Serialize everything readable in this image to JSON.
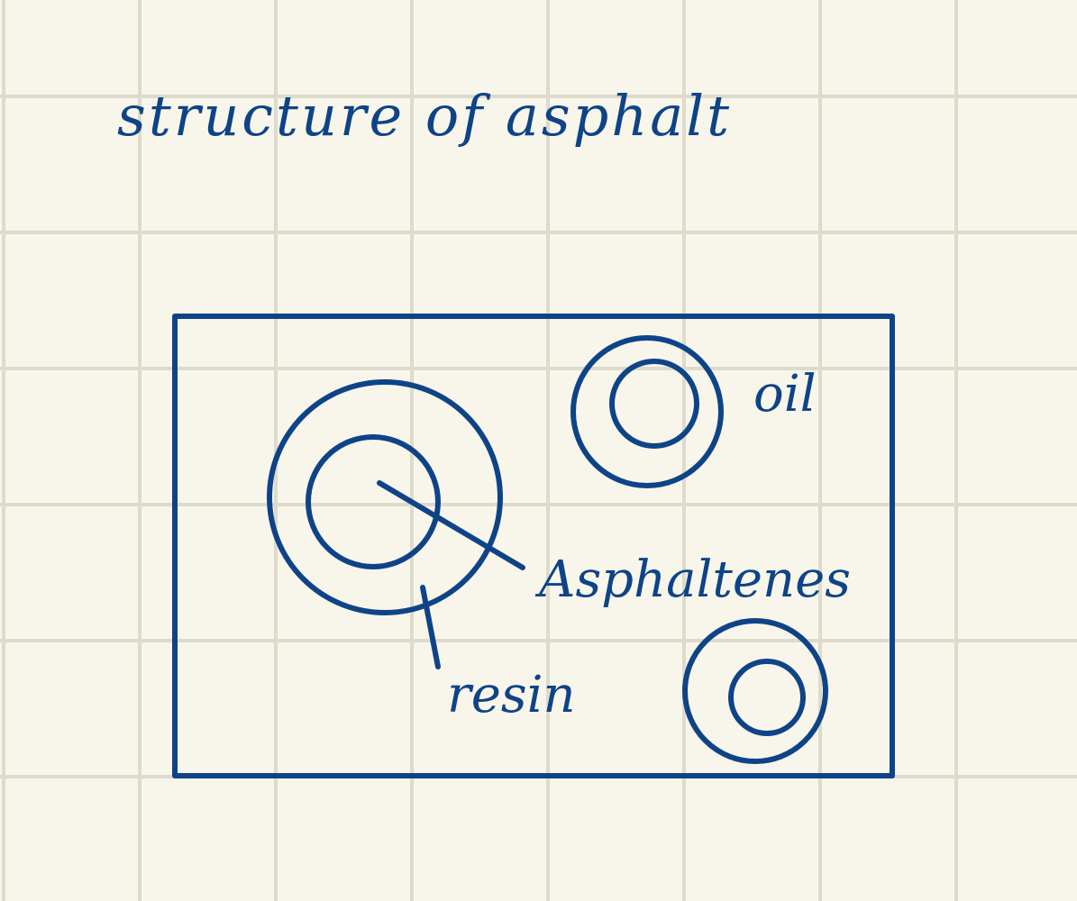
{
  "colors": {
    "paper": "#f8f5ea",
    "grid": "#dedbcc",
    "ink": "#0e4487"
  },
  "diagram": {
    "title": "structure of asphalt",
    "labels": {
      "oil": "oil",
      "asphaltenes": "Asphaltenes",
      "resin": "resin"
    }
  }
}
